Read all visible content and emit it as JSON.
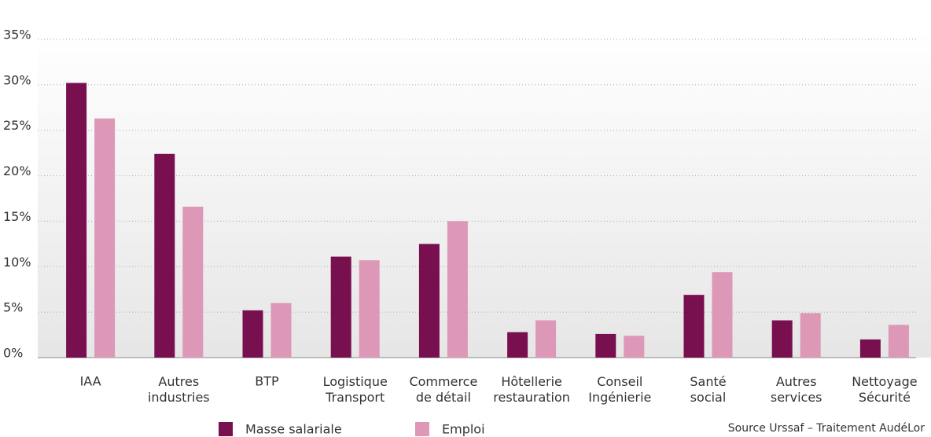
{
  "chart_data": {
    "type": "bar",
    "categories": [
      "IAA",
      "Autres industries",
      "BTP",
      "Logistique Transport",
      "Commerce de détail",
      "Hôtellerie restauration",
      "Conseil Ingénierie",
      "Santé social",
      "Autres services",
      "Nettoyage Sécurité"
    ],
    "series": [
      {
        "name": "Masse salariale",
        "color": "#780f4f",
        "values": [
          30.2,
          22.4,
          5.2,
          11.1,
          12.5,
          2.8,
          2.6,
          6.9,
          4.1,
          2.0
        ]
      },
      {
        "name": "Emploi",
        "color": "#dd97b7",
        "values": [
          26.3,
          16.6,
          6.0,
          10.7,
          15.0,
          4.1,
          2.4,
          9.4,
          4.9,
          3.6
        ]
      }
    ],
    "ylim": [
      0,
      35
    ],
    "yticks": [
      {
        "value": 0,
        "label": "0%"
      },
      {
        "value": 5,
        "label": "5%"
      },
      {
        "value": 10,
        "label": "10%"
      },
      {
        "value": 15,
        "label": "15%"
      },
      {
        "value": 20,
        "label": "20%"
      },
      {
        "value": 25,
        "label": "25%"
      },
      {
        "value": 30,
        "label": "30%"
      },
      {
        "value": 35,
        "label": "35%"
      }
    ],
    "grid": true,
    "source": "Source Urssaf – Traitement AudéLor"
  }
}
